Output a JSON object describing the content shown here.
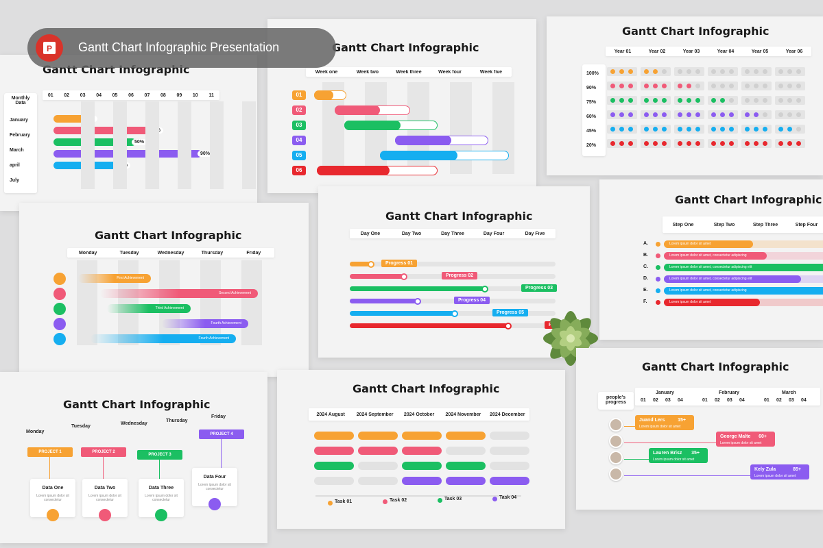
{
  "banner": {
    "title": "Gantt Chart Infographic Presentation",
    "icon": "powerpoint-icon"
  },
  "colors": {
    "orange": "#f7a233",
    "pink": "#f05a78",
    "green": "#1bbf62",
    "purple": "#8b5cf0",
    "blue": "#15aef0",
    "red": "#e8282e"
  },
  "slide1": {
    "title": "Gantt Chart Infographic",
    "row_header": "Monthly Data",
    "months": [
      "January",
      "February",
      "March",
      "april",
      "July"
    ],
    "cols": [
      "01",
      "02",
      "03",
      "04",
      "05",
      "06",
      "07",
      "08",
      "09",
      "10",
      "11"
    ],
    "bars": [
      {
        "label": "20%",
        "value": 0.2
      },
      {
        "label": "60%",
        "value": 0.6
      },
      {
        "label": "50%",
        "value": 0.5
      },
      {
        "label": "90%",
        "value": 0.9
      },
      {
        "label": "40%",
        "value": 0.4
      }
    ]
  },
  "slide2": {
    "title": "Gantt Chart Infographic",
    "weeks": [
      "Week one",
      "Week two",
      "Week three",
      "Week four",
      "Week five"
    ],
    "rows": [
      "01",
      "02",
      "03",
      "04",
      "05",
      "06"
    ]
  },
  "slide3": {
    "title": "Gantt Chart Infographic",
    "years": [
      "Year 01",
      "Year 02",
      "Year 03",
      "Year 04",
      "Year 05",
      "Year 06"
    ],
    "percents": [
      "100%",
      "90%",
      "75%",
      "60%",
      "45%",
      "20%"
    ]
  },
  "slide4": {
    "title": "Gantt Chart Infographic",
    "days": [
      "Monday",
      "Tuesday",
      "Wednesday",
      "Thursday",
      "Friday"
    ],
    "bars": [
      "First Achievement",
      "Second Achievement",
      "Third  Achievement",
      "Fourth  Achievement",
      "Fourth  Achievement"
    ]
  },
  "slide5": {
    "title": "Gantt Chart Infographic",
    "days": [
      "Day One",
      "Day Two",
      "Day Three",
      "Day Four",
      "Day Five"
    ],
    "progress": [
      "Progress 01",
      "Progress 02",
      "Progress 03",
      "Progress 04",
      "Progress 05",
      "Progress"
    ]
  },
  "slide6": {
    "title": "Gantt Chart Infographic",
    "steps": [
      "Step One",
      "Step Two",
      "Step Three",
      "Step Four"
    ],
    "letters": [
      "A.",
      "B.",
      "C.",
      "D.",
      "E.",
      "F."
    ],
    "texts": [
      "Lorem ipsum dolor sit amet",
      "Lorem ipsum dolor sit amet, consectetur adipiscing",
      "Lorem ipsum dolor sit amet, consectetur adipiscing elit",
      "Lorem ipsum dolor sit amet, consectetur adipiscing elit",
      "Lorem ipsum dolor sit amet, consectetur adipiscing",
      "Lorem ipsum dolor sit amet"
    ]
  },
  "slide7": {
    "title": "Gantt Chart Infographic",
    "days": [
      "Monday",
      "Tuesday",
      "Wednesday",
      "Thursday",
      "Friday"
    ],
    "projects": [
      "PROJECT 1",
      "PROJECT 2",
      "PROJECT 3",
      "PROJECT 4"
    ],
    "cards": [
      {
        "title": "Data One",
        "text": "Lorem ipsum dolor sit consectetur"
      },
      {
        "title": "Data Two",
        "text": "Lorem ipsum dolor sit consectetur"
      },
      {
        "title": "Data Three",
        "text": "Lorem ipsum dolor sit consectetur"
      },
      {
        "title": "Data Four",
        "text": "Lorem ipsum dolor sit consectetur"
      }
    ]
  },
  "slide8": {
    "title": "Gantt Chart Infographic",
    "months": [
      "2024 August",
      "2024 September",
      "2024 October",
      "2024 November",
      "2024 December"
    ],
    "tasks": [
      "Task 01",
      "Task 02",
      "Task 03",
      "Task 04"
    ]
  },
  "slide9": {
    "title": "Gantt Chart Infographic",
    "corner": "people's progress",
    "months": [
      "January",
      "February",
      "March"
    ],
    "weeks": [
      "01",
      "02",
      "03",
      "04"
    ],
    "people": [
      {
        "name": "Juand Lers",
        "pct": "15+",
        "text": "Lorem ipsum dolor sit amet"
      },
      {
        "name": "George Malte",
        "pct": "60+",
        "text": "Lorem ipsum dolor sit amet"
      },
      {
        "name": "Lauren Brisz",
        "pct": "35+",
        "text": "Lorem ipsum dolor sit amet"
      },
      {
        "name": "Kely Zula",
        "pct": "85+",
        "text": "Lorem ipsum dolor sit amet"
      }
    ]
  }
}
